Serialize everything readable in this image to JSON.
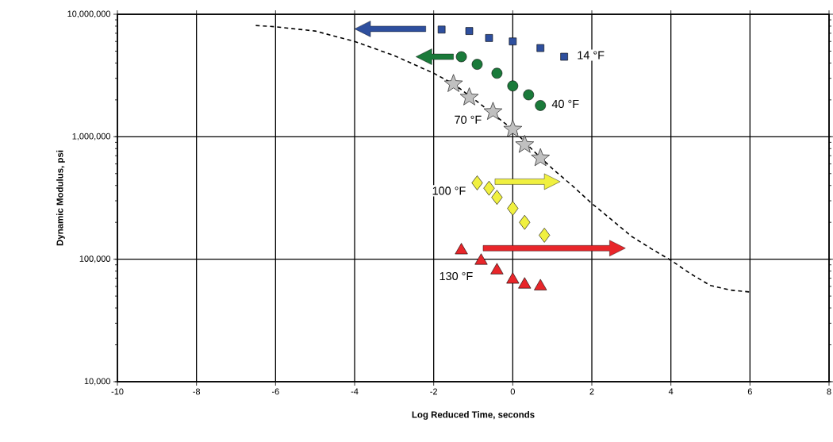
{
  "chart_data": {
    "type": "scatter",
    "xlabel": "Log Reduced Time, seconds",
    "ylabel": "Dynamic Modulus, psi",
    "xlim": [
      -10,
      8
    ],
    "xticks": [
      -10,
      -8,
      -6,
      -4,
      -2,
      0,
      2,
      4,
      6,
      8
    ],
    "ylim": [
      10000,
      10000000
    ],
    "log": "y",
    "grid": true,
    "legend": false,
    "yticks": [
      {
        "value": 10000,
        "label": "10,000"
      },
      {
        "value": 100000,
        "label": "100,000"
      },
      {
        "value": 1000000,
        "label": "1,000,000"
      },
      {
        "value": 10000000,
        "label": "10,000,000"
      }
    ],
    "series": [
      {
        "name": "14 °F",
        "color": "#2e4f9e",
        "marker": "square",
        "x": [
          -1.8,
          -1.1,
          -0.6,
          0,
          0.7,
          1.3
        ],
        "values": [
          7500000,
          7300000,
          6400000,
          6000000,
          5300000,
          4500000
        ]
      },
      {
        "name": "40 °F",
        "color": "#1a7a3a",
        "marker": "circle",
        "x": [
          -1.3,
          -0.9,
          -0.4,
          0,
          0.4,
          0.7
        ],
        "values": [
          4500000,
          3900000,
          3300000,
          2600000,
          2200000,
          1800000
        ]
      },
      {
        "name": "70 °F",
        "color": "#c0c0c0",
        "marker": "star",
        "x": [
          -1.5,
          -1.1,
          -0.5,
          0,
          0.3,
          0.7
        ],
        "values": [
          2700000,
          2100000,
          1600000,
          1150000,
          860000,
          670000
        ]
      },
      {
        "name": "100 °F",
        "color": "#f0f040",
        "marker": "diamond",
        "x": [
          -0.9,
          -0.6,
          -0.4,
          0,
          0.3,
          0.8
        ],
        "values": [
          420000,
          380000,
          320000,
          260000,
          200000,
          157000
        ]
      },
      {
        "name": "130 °F",
        "color": "#e8262a",
        "marker": "triangle",
        "x": [
          -1.3,
          -0.8,
          -0.4,
          0,
          0.3,
          0.7
        ],
        "values": [
          118000,
          97000,
          81000,
          68000,
          62000,
          60000
        ]
      },
      {
        "type": "line",
        "color": "#000000",
        "line_style": "dashed",
        "marker": "none",
        "x": [
          -6.5,
          -6,
          -5,
          -4,
          -3,
          -2,
          -1.5,
          -1,
          0,
          0.5,
          1,
          1.5,
          2,
          2.5,
          3,
          3.5,
          4,
          4.5,
          5,
          5.5,
          6
        ],
        "values": [
          8100000,
          7900000,
          7300000,
          6000000,
          4600000,
          3300000,
          2700000,
          2050000,
          1150000,
          780000,
          550000,
          400000,
          285000,
          210000,
          154000,
          122000,
          98000,
          76000,
          61000,
          56000,
          54000
        ]
      }
    ]
  }
}
